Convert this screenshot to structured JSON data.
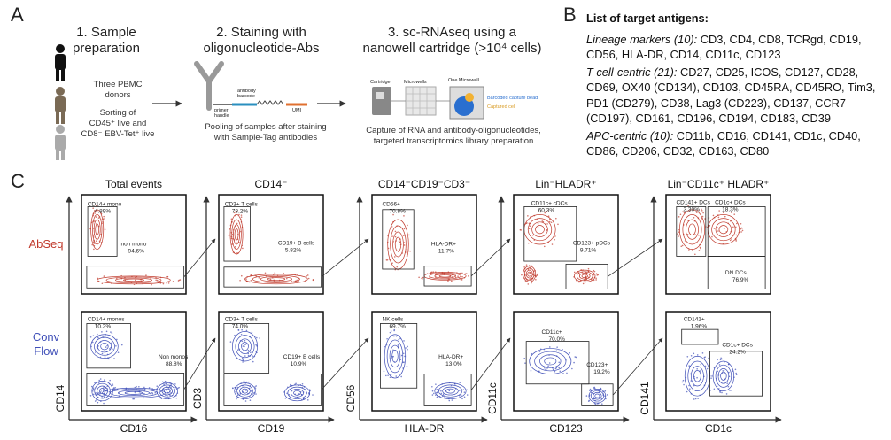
{
  "panel_a": {
    "label": "A",
    "steps": [
      {
        "title_lines": [
          "1. Sample",
          "preparation"
        ]
      },
      {
        "title_lines": [
          "2. Staining with",
          "oligonucleotide-Abs"
        ]
      },
      {
        "title_lines": [
          "3. sc-RNAseq using a",
          "nanowell cartridge (>10⁴ cells)"
        ]
      }
    ],
    "donors": "Three PBMC donors",
    "sorting_lines": [
      "Sorting of",
      "CD45⁺ live and",
      "CD8⁻ EBV-Tet⁺ live"
    ],
    "antibody_labels": {
      "primer": "primer handle",
      "barcode": "antibody barcode",
      "umi": "UMI"
    },
    "staining_caption_lines": [
      "Pooling of samples after staining",
      "with Sample-Tag antibodies"
    ],
    "cartridge_labels": {
      "cartridge": "Cartridge",
      "microwells": "Microwells",
      "one_microwell": "One Microwell",
      "bead": "Barcoded capture bead",
      "cell": "Captured cell"
    },
    "capture_caption_lines": [
      "Capture of RNA and antibody-oligonucleotides,",
      "targeted transcriptomics library preparation"
    ]
  },
  "panel_b": {
    "label": "B",
    "title": "List of target antigens:",
    "groups": [
      {
        "heading": "Lineage markers (10):",
        "items": "CD3, CD4, CD8, TCRgd, CD19, CD56, HLA-DR, CD14, CD11c, CD123"
      },
      {
        "heading": "T cell-centric (21):",
        "items": "CD27, CD25, ICOS, CD127, CD28, CD69, OX40 (CD134), CD103, CD45RA, CD45RO, Tim3, PD1 (CD279), CD38, Lag3 (CD223), CD137, CCR7 (CD197), CD161, CD196, CD194, CD183, CD39"
      },
      {
        "heading": "APC-centric (10):",
        "items": "CD11b, CD16, CD141, CD1c, CD40, CD86, CD206, CD32, CD163, CD80"
      }
    ]
  },
  "panel_c": {
    "label": "C",
    "rows": [
      {
        "name": "AbSeq",
        "color": "#c0392b"
      },
      {
        "name": "Conv Flow",
        "color": "#3f4fb8"
      }
    ],
    "plots": [
      {
        "title": "Total events",
        "x_label": "CD16",
        "y_label": "CD14",
        "gates": [
          [
            {
              "name": "CD14+ mono",
              "percent": "4.89%"
            },
            {
              "name": "non mono",
              "percent": "94.6%"
            }
          ],
          [
            {
              "name": "CD14+ monos",
              "percent": "10.2%"
            },
            {
              "name": "Non monos",
              "percent": "88.8%"
            }
          ]
        ]
      },
      {
        "title": "CD14⁻",
        "x_label": "CD19",
        "y_label": "CD3",
        "gates": [
          [
            {
              "name": "CD3+ T cells",
              "percent": "78.2%"
            },
            {
              "name": "CD19+ B cells",
              "percent": "5.82%"
            }
          ],
          [
            {
              "name": "CD3+ T cells",
              "percent": "74.0%"
            },
            {
              "name": "CD19+ B cells",
              "percent": "10.9%"
            }
          ]
        ]
      },
      {
        "title": "CD14⁻CD19⁻CD3⁻",
        "x_label": "HLA-DR",
        "y_label": "CD56",
        "gates": [
          [
            {
              "name": "CD56+",
              "percent": "70.8%"
            },
            {
              "name": "HLA-DR+",
              "percent": "11.7%"
            }
          ],
          [
            {
              "name": "NK cells",
              "percent": "69.7%"
            },
            {
              "name": "HLA-DR+",
              "percent": "13.0%"
            }
          ]
        ]
      },
      {
        "title": "Lin⁻HLADR⁺",
        "x_label": "CD123",
        "y_label": "CD11c",
        "gates": [
          [
            {
              "name": "CD11c+ cDCs",
              "percent": "60.3%"
            },
            {
              "name": "CD123+ pDCs",
              "percent": "9.71%"
            }
          ],
          [
            {
              "name": "CD11c+",
              "percent": "70.0%"
            },
            {
              "name": "CD123+",
              "percent": "19.2%"
            }
          ]
        ]
      },
      {
        "title": "Lin⁻CD11c⁺ HLADR⁺",
        "x_label": "CD1c",
        "y_label": "CD141",
        "gates": [
          [
            {
              "name": "CD141+ DCs",
              "percent": "3.30%"
            },
            {
              "name": "CD1c+ DCs",
              "percent": "18.3%"
            },
            {
              "name": "DN DCs",
              "percent": "76.9%"
            }
          ],
          [
            {
              "name": "CD141+",
              "percent": "1.96%"
            },
            {
              "name": "CD1c+ DCs",
              "percent": "24.2%"
            }
          ]
        ]
      }
    ]
  }
}
